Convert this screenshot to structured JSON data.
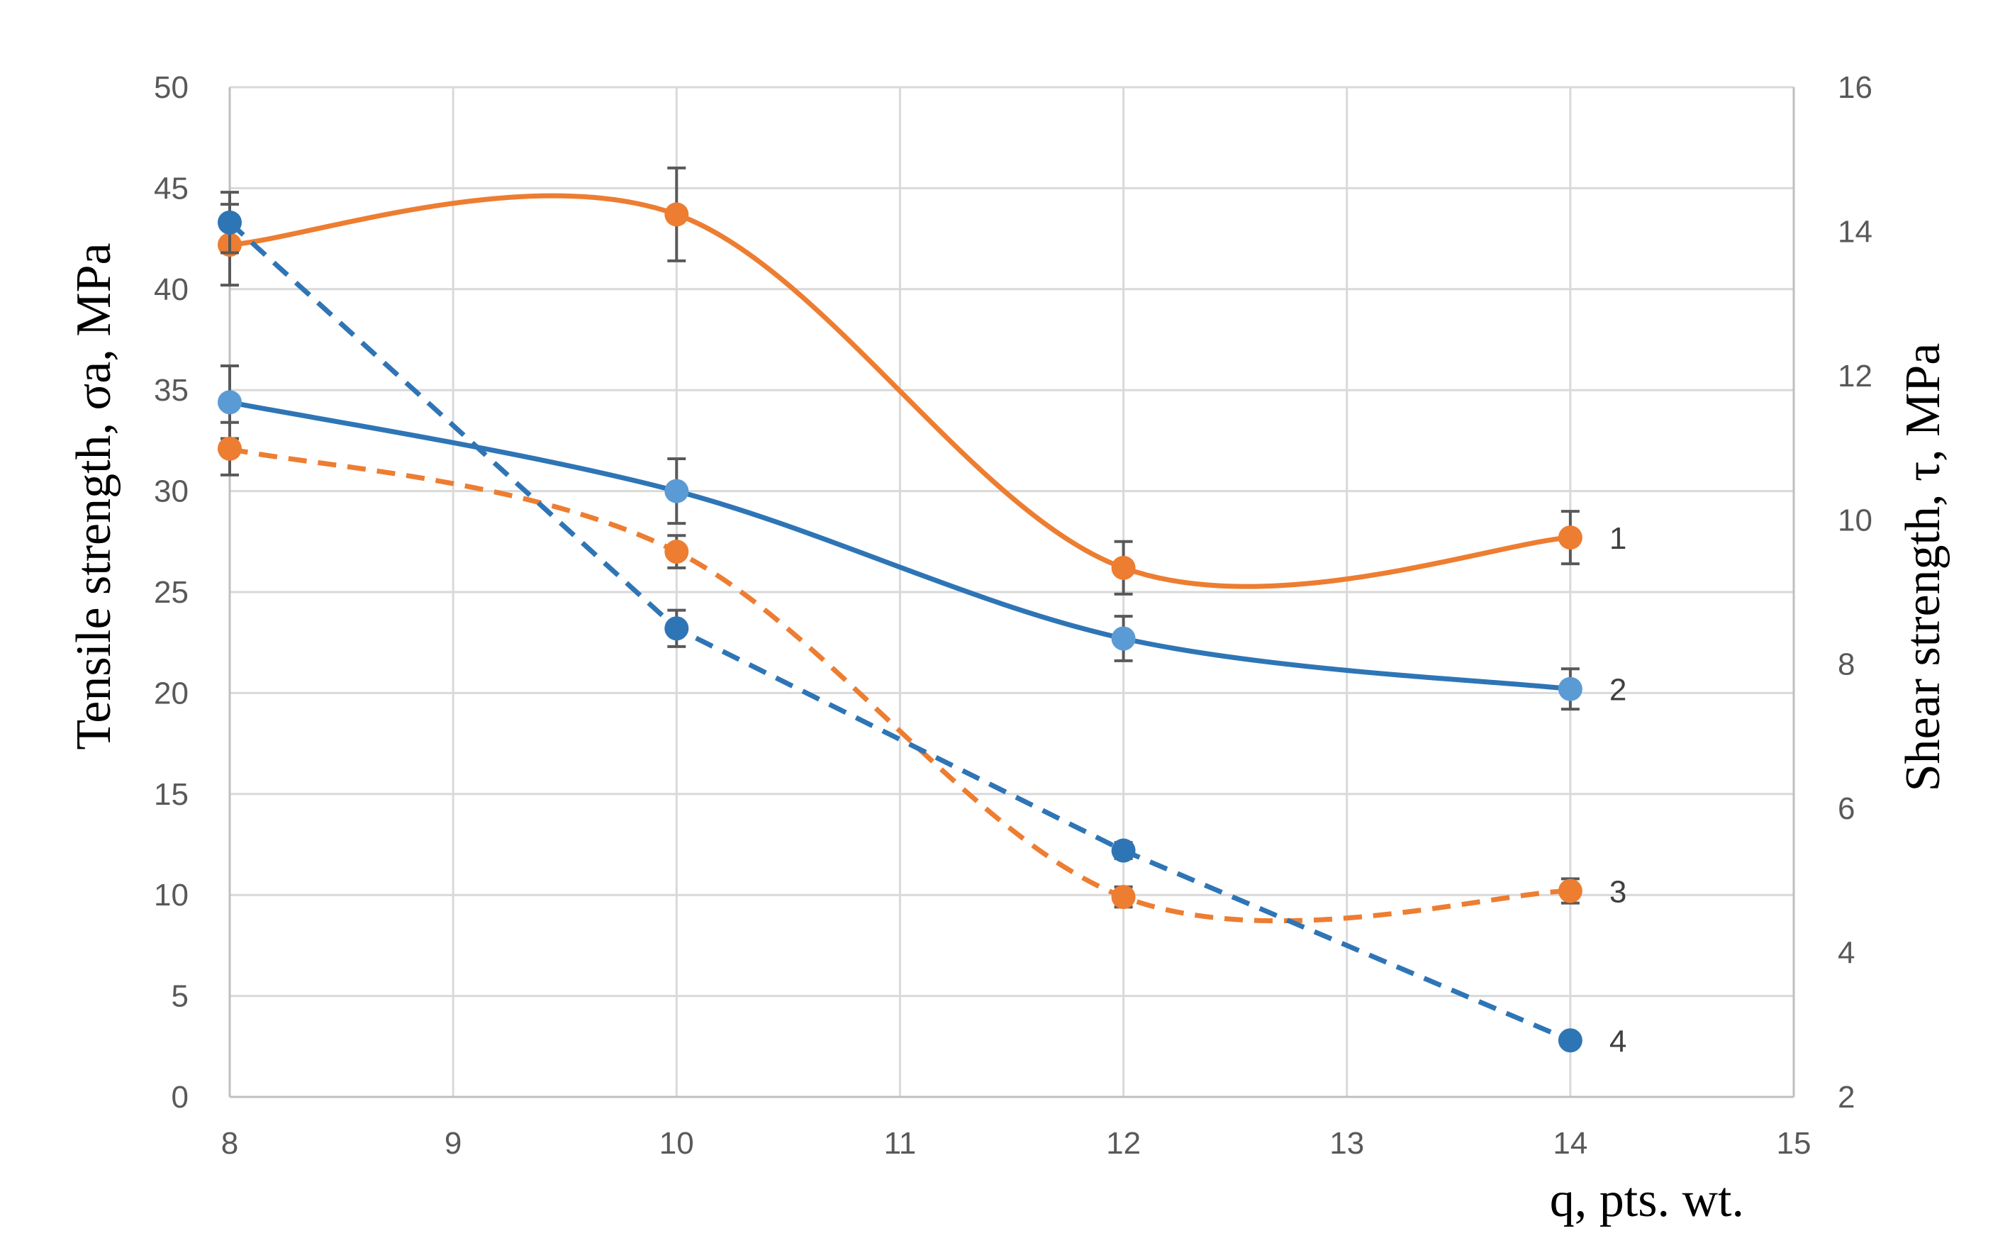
{
  "chart_data": {
    "type": "line",
    "title": "",
    "xlabel": "q, pts. wt.",
    "ylabel_left": "Tensile strength, σa, MPa",
    "ylabel_right": "Shear strength, τ, MPa",
    "xlim": [
      8,
      15
    ],
    "ylim_left": [
      0,
      50
    ],
    "ylim_right": [
      2,
      16
    ],
    "x_ticks": [
      "8",
      "9",
      "10",
      "11",
      "12",
      "13",
      "14",
      "15"
    ],
    "y_ticks_left": [
      "0",
      "5",
      "10",
      "15",
      "20",
      "25",
      "30",
      "35",
      "40",
      "45",
      "50"
    ],
    "y_ticks_right": [
      "2",
      "4",
      "6",
      "8",
      "10",
      "12",
      "14",
      "16"
    ],
    "grid": true,
    "series": [
      {
        "name": "1",
        "axis": "left",
        "style": "solid",
        "color": "#ED7D31",
        "marker_color": "#ED7D31",
        "x": [
          8,
          10,
          12,
          14
        ],
        "values": [
          42.2,
          43.7,
          26.2,
          27.7
        ],
        "errors": [
          2.0,
          2.3,
          1.3,
          1.3
        ]
      },
      {
        "name": "2",
        "axis": "left",
        "style": "solid",
        "color": "#2E75B6",
        "marker_color": "#5B9BD5",
        "x": [
          8,
          10,
          12,
          14
        ],
        "values": [
          34.4,
          30.0,
          22.7,
          20.2
        ],
        "errors": [
          1.8,
          1.6,
          1.1,
          1.0
        ]
      },
      {
        "name": "3",
        "axis": "left",
        "style": "dashed",
        "color": "#ED7D31",
        "marker_color": "#ED7D31",
        "x": [
          8,
          10,
          12,
          14
        ],
        "values": [
          32.1,
          27.0,
          9.9,
          10.2
        ],
        "errors": [
          1.3,
          0.8,
          0.5,
          0.6
        ]
      },
      {
        "name": "4",
        "axis": "left",
        "style": "dashed",
        "color": "#2E75B6",
        "marker_color": "#2E75B6",
        "x": [
          8,
          10,
          12,
          14
        ],
        "values": [
          43.3,
          23.2,
          12.2,
          2.8
        ],
        "errors": [
          1.5,
          0.9,
          0.4,
          0.3
        ]
      }
    ]
  }
}
